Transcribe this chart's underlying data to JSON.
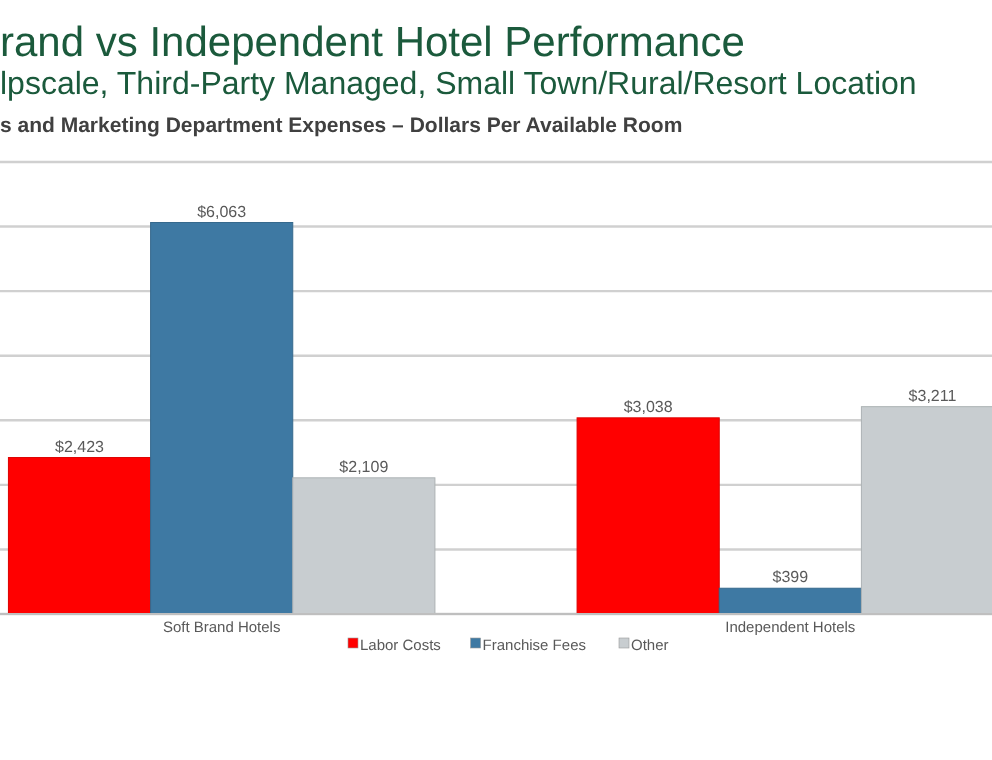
{
  "chart_data": {
    "type": "bar",
    "title": "rand vs Independent Hotel Performance",
    "subtitle": "lpscale, Third-Party Managed, Small Town/Rural/Resort Location",
    "annotations": [
      "s and Marketing Department  Expenses – Dollars Per Available Room"
    ],
    "categories": [
      "Soft Brand Hotels",
      "Independent Hotels"
    ],
    "series": [
      {
        "name": "Labor Costs",
        "color": "#ff0000",
        "values": [
          2423,
          3038
        ],
        "value_labels": [
          "$2,423",
          "$3,038"
        ]
      },
      {
        "name": "Franchise Fees",
        "color": "#3e79a3",
        "values": [
          6063,
          399
        ],
        "value_labels": [
          "$6,063",
          "$399"
        ]
      },
      {
        "name": "Other",
        "color": "#c8cdd0",
        "values": [
          2109,
          3211
        ],
        "value_labels": [
          "$2,109",
          "$3,211"
        ]
      }
    ],
    "ylim": [
      0,
      7000
    ],
    "yticks": [
      {
        "value": 0,
        "label": null
      },
      {
        "value": 1000,
        "label": null
      },
      {
        "value": 2000,
        "label": null
      },
      {
        "value": 3000,
        "label": null
      },
      {
        "value": 4000,
        "label": null
      },
      {
        "value": 5000,
        "label": null
      },
      {
        "value": 6000,
        "label": null
      },
      {
        "value": 7000,
        "label": null
      }
    ],
    "grid": true,
    "tick_labels": "x",
    "legend": "bottom"
  }
}
